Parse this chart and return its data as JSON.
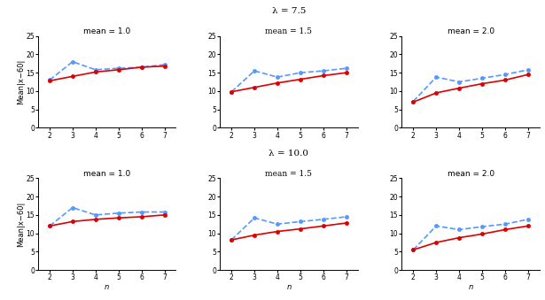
{
  "n_values": [
    2,
    3,
    4,
    5,
    6,
    7
  ],
  "subplots": [
    {
      "row": 0,
      "col": 0,
      "subtitle": "mean = 1.0",
      "bcgp": [
        13.0,
        18.0,
        15.8,
        16.2,
        16.5,
        17.2
      ],
      "bcgm": [
        12.8,
        14.0,
        15.2,
        15.8,
        16.5,
        16.8
      ]
    },
    {
      "row": 0,
      "col": 1,
      "subtitle": "mean = 1.5",
      "bcgp": [
        9.8,
        15.5,
        13.8,
        15.0,
        15.5,
        16.2
      ],
      "bcgm": [
        9.8,
        11.0,
        12.2,
        13.2,
        14.2,
        15.0
      ]
    },
    {
      "row": 0,
      "col": 2,
      "subtitle": "mean = 2.0",
      "bcgp": [
        7.2,
        13.8,
        12.5,
        13.5,
        14.5,
        15.8
      ],
      "bcgm": [
        7.0,
        9.5,
        10.8,
        12.0,
        13.0,
        14.5
      ]
    },
    {
      "row": 1,
      "col": 0,
      "subtitle": "mean = 1.0",
      "bcgp": [
        12.0,
        17.0,
        15.0,
        15.5,
        15.8,
        15.8
      ],
      "bcgm": [
        12.0,
        13.2,
        13.8,
        14.2,
        14.5,
        15.0
      ]
    },
    {
      "row": 1,
      "col": 1,
      "subtitle": "mean = 1.5",
      "bcgp": [
        8.2,
        14.2,
        12.5,
        13.2,
        13.8,
        14.5
      ],
      "bcgm": [
        8.2,
        9.5,
        10.5,
        11.2,
        12.0,
        12.8
      ]
    },
    {
      "row": 1,
      "col": 2,
      "subtitle": "mean = 2.0",
      "bcgp": [
        5.5,
        12.0,
        11.0,
        11.8,
        12.5,
        13.8
      ],
      "bcgm": [
        5.5,
        7.5,
        8.8,
        9.8,
        11.0,
        12.0
      ]
    }
  ],
  "row_super_titles": [
    "λ = 7.5",
    "λ = 10.0"
  ],
  "color_bcgp": "#5599ff",
  "color_bcgm": "#dd0000",
  "ylim": [
    0,
    25
  ],
  "yticks": [
    0,
    5,
    10,
    15,
    20,
    25
  ],
  "ylabel": "Mean|x−60|",
  "xlabel": "n",
  "title_fontsize": 6.5,
  "super_fontsize": 7.5,
  "tick_fontsize": 5.5,
  "label_fontsize": 6.0
}
